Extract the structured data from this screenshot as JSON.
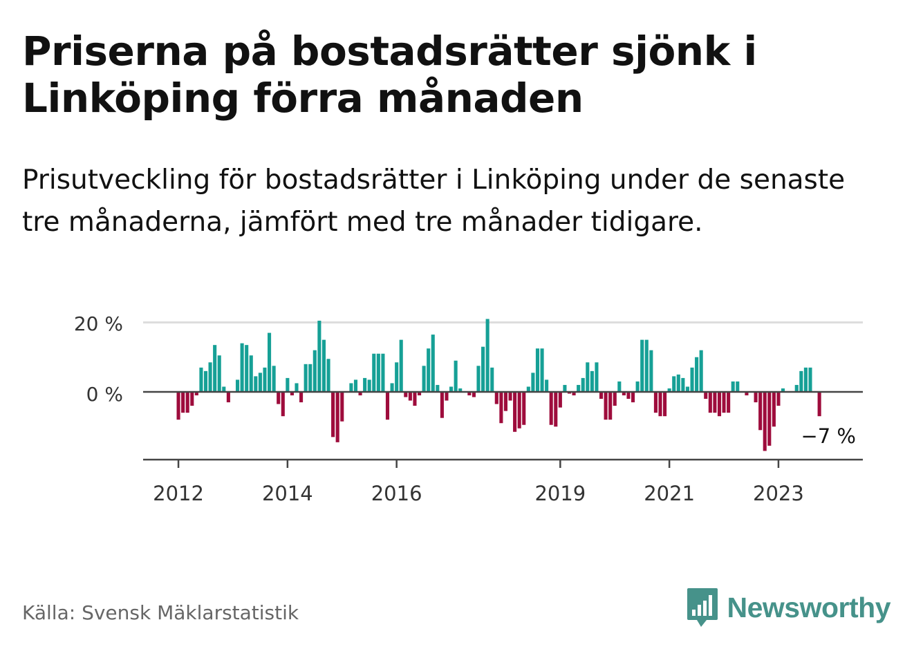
{
  "header": {
    "title": "Priserna på bostadsrätter sjönk i Linköping förra månaden",
    "subtitle": "Prisutveckling för bostadsrätter i Linköping under de senaste tre månaderna, jämfört med tre månader tidigare."
  },
  "footer": {
    "source": "Källa: Svensk Mäklarstatistik",
    "brand": "Newsworthy",
    "brand_icon": "bar-chart-speech-bubble-icon"
  },
  "colors": {
    "positive": "#16a096",
    "negative": "#9e0c3c",
    "grid": "#dddddd",
    "axis": "#444444",
    "brand": "#46928a"
  },
  "chart_data": {
    "type": "bar",
    "unit": "%",
    "ylim": [
      -19,
      21
    ],
    "y_ticks": [
      {
        "value": 0,
        "label": "0 %"
      },
      {
        "value": 20,
        "label": "20 %"
      }
    ],
    "x_ticks": [
      {
        "year": 2012,
        "label": "2012"
      },
      {
        "year": 2014,
        "label": "2014"
      },
      {
        "year": 2016,
        "label": "2016"
      },
      {
        "year": 2019,
        "label": "2019"
      },
      {
        "year": 2021,
        "label": "2021"
      },
      {
        "year": 2023,
        "label": "2023"
      }
    ],
    "grid": true,
    "start": "2012-01",
    "annotation": {
      "label": "−7 %",
      "value": -7
    },
    "values": [
      -8,
      -6,
      -6,
      -4,
      -1,
      7,
      6,
      8.5,
      13.5,
      10.5,
      1.5,
      -3,
      0,
      3.5,
      14,
      13.5,
      10.5,
      4.5,
      5.5,
      7,
      17,
      7.5,
      -3.5,
      -7,
      4,
      -1,
      2.5,
      -3,
      8,
      8,
      12,
      20.5,
      15,
      9.5,
      -13,
      -14.5,
      -8.5,
      0,
      2.5,
      3.5,
      -1,
      4,
      3.5,
      11,
      11,
      11,
      -8,
      2.5,
      8.5,
      15,
      -1.5,
      -2.5,
      -4,
      -1,
      7.5,
      12.5,
      16.5,
      2,
      -7.5,
      -2.5,
      1.5,
      9,
      1,
      0,
      -1,
      -1.5,
      7.5,
      13,
      21,
      7,
      -3.5,
      -9,
      -5.5,
      -2.5,
      -11.5,
      -10.5,
      -9.5,
      1.5,
      5.5,
      12.5,
      12.5,
      3.5,
      -9.5,
      -10,
      -4.5,
      2,
      -0.5,
      -1,
      2,
      4,
      8.5,
      6,
      8.5,
      -2,
      -8,
      -8,
      -4,
      3,
      -1,
      -2,
      -3,
      3,
      15,
      15,
      12,
      -6,
      -7,
      -7,
      1,
      4.5,
      5,
      4,
      1.5,
      7,
      10,
      12,
      -2,
      -6,
      -6,
      -7,
      -6,
      -6,
      3,
      3,
      0,
      -1,
      0,
      -3,
      -11,
      -17,
      -15.5,
      -10,
      -4,
      1,
      0,
      0,
      2,
      6,
      7,
      7,
      0,
      -7
    ]
  }
}
